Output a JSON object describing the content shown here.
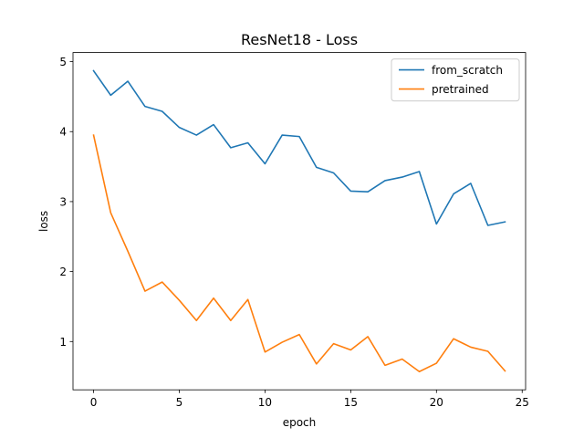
{
  "chart_data": {
    "type": "line",
    "title": "ResNet18 - Loss",
    "xlabel": "epoch",
    "ylabel": "loss",
    "xlim": [
      -1.2,
      25.2
    ],
    "ylim": [
      0.31,
      5.13
    ],
    "xticks": [
      0,
      5,
      10,
      15,
      20,
      25
    ],
    "yticks": [
      1,
      2,
      3,
      4,
      5
    ],
    "grid": false,
    "legend_position": "top-right",
    "x": [
      0,
      1,
      2,
      3,
      4,
      5,
      6,
      7,
      8,
      9,
      10,
      11,
      12,
      13,
      14,
      15,
      16,
      17,
      18,
      19,
      20,
      21,
      22,
      23,
      24
    ],
    "series": [
      {
        "name": "from_scratch",
        "color": "#1f77b4",
        "values": [
          4.87,
          4.52,
          4.72,
          4.36,
          4.29,
          4.06,
          3.95,
          4.1,
          3.77,
          3.84,
          3.54,
          3.95,
          3.93,
          3.49,
          3.41,
          3.15,
          3.14,
          3.3,
          3.35,
          3.43,
          2.68,
          3.11,
          3.26,
          2.66,
          2.71
        ]
      },
      {
        "name": "pretrained",
        "color": "#ff7f0e",
        "values": [
          3.95,
          2.84,
          2.29,
          1.72,
          1.85,
          1.59,
          1.3,
          1.62,
          1.3,
          1.6,
          0.85,
          0.99,
          1.1,
          0.68,
          0.97,
          0.88,
          1.07,
          0.66,
          0.75,
          0.57,
          0.69,
          1.04,
          0.92,
          0.86,
          0.58
        ]
      }
    ]
  }
}
